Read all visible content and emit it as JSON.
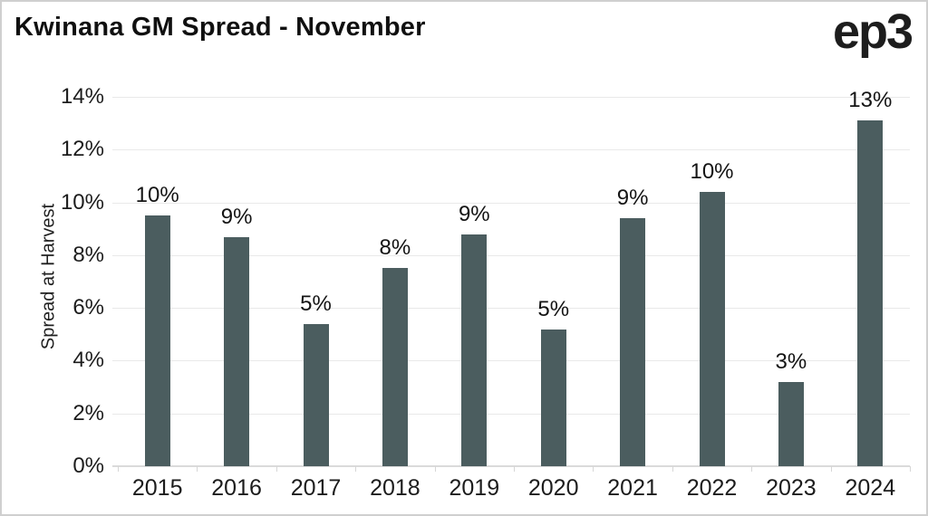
{
  "page": {
    "title": "Kwinana GM Spread - November",
    "logo_text": "ep3"
  },
  "chart_data": {
    "type": "bar",
    "title": "Kwinana GM Spread - November",
    "xlabel": "",
    "ylabel": "Spread at Harvest",
    "categories": [
      "2015",
      "2016",
      "2017",
      "2018",
      "2019",
      "2020",
      "2021",
      "2022",
      "2023",
      "2024"
    ],
    "values": [
      9.5,
      8.7,
      5.4,
      7.5,
      8.8,
      5.2,
      9.4,
      10.4,
      3.2,
      13.1
    ],
    "bar_labels": [
      "10%",
      "9%",
      "5%",
      "8%",
      "9%",
      "5%",
      "9%",
      "10%",
      "3%",
      "13%"
    ],
    "ylim": [
      0,
      14
    ],
    "ytick_step": 2,
    "ytick_labels": [
      "0%",
      "2%",
      "4%",
      "6%",
      "8%",
      "10%",
      "12%",
      "14%"
    ],
    "grid": true,
    "legend": false,
    "colors": {
      "bar": "#4b5d5f",
      "gridline": "#e9e9e9",
      "axis": "#dadada",
      "text": "#1c1c1c",
      "title": "#101010"
    }
  }
}
